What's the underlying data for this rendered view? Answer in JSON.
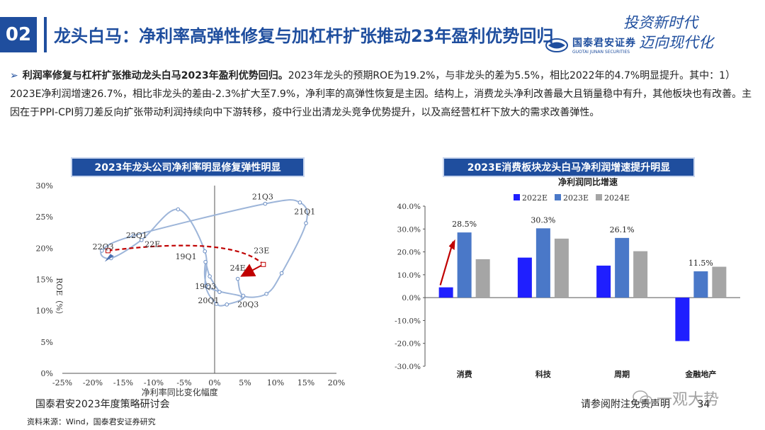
{
  "header": {
    "section_no": "02",
    "title": "龙头白马：净利率高弹性修复与加杠杆扩张推动23年盈利优势回归",
    "logo_cn": "国泰君安证券",
    "logo_en": "GUOTAI JUNAN SECURITIES",
    "slogan_line1": "投资新时代",
    "slogan_line2": "迈向现代化"
  },
  "summary": {
    "lead": "利润率修复与杠杆扩张推动龙头白马2023年盈利优势回归。",
    "body": "2023年龙头的预期ROE为19.2%，与非龙头的差为5.5%，相比2022年的4.7%明显提升。其中：1）2023E净利润增速26.7%，相比非龙头的差由-2.3%扩大至7.9%，净利率的高弹性恢复是主因。结构上，消费龙头净利改善最大且销量稳中有升，其他板块也有改善。主因在于PPI-CPI剪刀差反向扩张带动利润持续向中下游转移，疫中行业出清龙头竞争优势提升，以及高经营杠杆下放大的需求改善弹性。"
  },
  "chart_data": [
    {
      "type": "scatter",
      "title": "2023年龙头公司净利率明显修复弹性明显",
      "xlabel": "净利率同比变化幅度",
      "ylabel": "ROE（%）",
      "xlim": [
        -25,
        20
      ],
      "ylim": [
        0,
        30
      ],
      "x_ticks": [
        "-25%",
        "-20%",
        "-15%",
        "-10%",
        "-5%",
        "0%",
        "5%",
        "10%",
        "15%",
        "20%"
      ],
      "y_ticks": [
        "0%",
        "5%",
        "10%",
        "15%",
        "20%",
        "25%",
        "30%"
      ],
      "line_color": "#9db5d9",
      "arrow_color": "#c00000",
      "path": [
        {
          "x": 0.8,
          "y": 13.0
        },
        {
          "x": -0.8,
          "y": 15.5
        },
        {
          "x": -1.5,
          "y": 17.8
        },
        {
          "x": -1.0,
          "y": 13.8
        },
        {
          "x": 4.6,
          "y": 12.2
        },
        {
          "x": 2.0,
          "y": 11.0
        },
        {
          "x": 0.3,
          "y": 11.1
        },
        {
          "x": -1.5,
          "y": 14.0
        },
        {
          "x": -1.6,
          "y": 19.5
        },
        {
          "x": -6.0,
          "y": 26.2
        },
        {
          "x": -12.0,
          "y": 21.3
        },
        {
          "x": -17.0,
          "y": 18.4
        },
        {
          "x": -18.5,
          "y": 19.6
        },
        {
          "x": -13.3,
          "y": 22.0
        },
        {
          "x": 8.3,
          "y": 27.1
        },
        {
          "x": 14.0,
          "y": 27.3
        },
        {
          "x": 15.0,
          "y": 24.0
        },
        {
          "x": 11.0,
          "y": 16.0
        },
        {
          "x": 8.5,
          "y": 12.7
        },
        {
          "x": 4.7,
          "y": 12.4
        },
        {
          "x": 3.8,
          "y": 15.1
        }
      ],
      "labels": [
        {
          "text": "22Q3",
          "x": -18.3,
          "y": 19.8
        },
        {
          "text": "22Q1",
          "x": -12.8,
          "y": 21.6
        },
        {
          "text": "22E",
          "x": -10.2,
          "y": 20.2
        },
        {
          "text": "21Q3",
          "x": 7.9,
          "y": 27.8
        },
        {
          "text": "21Q1",
          "x": 14.8,
          "y": 25.4
        },
        {
          "text": "23E",
          "x": 7.7,
          "y": 19.2
        },
        {
          "text": "19Q1",
          "x": -4.7,
          "y": 18.2
        },
        {
          "text": "24E",
          "x": 3.8,
          "y": 16.4
        },
        {
          "text": "19Q3",
          "x": -1.5,
          "y": 13.5
        },
        {
          "text": "20Q1",
          "x": -1.0,
          "y": 11.2
        },
        {
          "text": "20Q3",
          "x": 5.5,
          "y": 10.6
        }
      ],
      "arrow_from": {
        "x": -17.5,
        "y": 19.6
      },
      "arrow_mid": {
        "x": 3.0,
        "y": 22.0
      },
      "arrow_to_23e": {
        "x": 8.0,
        "y": 17.4
      },
      "arrow_to_24e": {
        "x": 4.1,
        "y": 15.3
      }
    },
    {
      "type": "bar",
      "title": "2023E消费板块龙头白马净利润增速提升明显",
      "subtitle": "净利润同比增速",
      "categories": [
        "消费",
        "科技",
        "周期",
        "金融地产"
      ],
      "series": [
        {
          "name": "2022E",
          "color": "#1f1fff",
          "values": [
            4.5,
            17.5,
            14.0,
            -19.0
          ]
        },
        {
          "name": "2023E",
          "color": "#4a78c8",
          "values": [
            28.5,
            30.3,
            26.1,
            11.5
          ]
        },
        {
          "name": "2024E",
          "color": "#a5a5a5",
          "values": [
            16.8,
            25.8,
            20.3,
            13.5
          ]
        }
      ],
      "data_labels": [
        {
          "category": 0,
          "series": 1,
          "text": "28.5%"
        },
        {
          "category": 1,
          "series": 1,
          "text": "30.3%"
        },
        {
          "category": 2,
          "series": 1,
          "text": "26.1%"
        },
        {
          "category": 3,
          "series": 1,
          "text": "11.5%"
        }
      ],
      "ylim": [
        -30,
        40
      ],
      "y_ticks": [
        "-30.0%",
        "-20.0%",
        "-10.0%",
        "0.0%",
        "10.0%",
        "20.0%",
        "30.0%",
        "40.0%"
      ],
      "legend": "top-center"
    }
  ],
  "footer": {
    "event": "国泰君安2023年度策略研讨会",
    "source": "资料来源：Wind，国泰君安证券研究",
    "disclaimer": "请参阅附注免责声明",
    "page": "34",
    "watermark": "一观大势"
  }
}
